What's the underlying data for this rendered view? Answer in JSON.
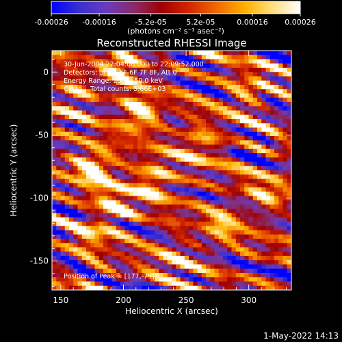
{
  "chart_data": {
    "type": "heatmap",
    "title": "Reconstructed RHESSI Image",
    "xlabel": "Heliocentric X (arcsec)",
    "ylabel": "Heliocentric Y (arcsec)",
    "xlim": [
      143,
      334
    ],
    "ylim": [
      -173,
      17
    ],
    "x_ticks": [
      150,
      200,
      250,
      300
    ],
    "y_ticks": [
      0,
      -50,
      -100,
      -150
    ],
    "colorbar": {
      "range": [
        -0.00026,
        0.00026
      ],
      "ticks": [
        "-0.00026",
        "-0.00016",
        "-5.2e-05",
        "5.2e-05",
        "0.00016",
        "0.00026"
      ],
      "tick_values": [
        -0.00026,
        -0.00016,
        -5.2e-05,
        5.2e-05,
        0.00016,
        0.00026
      ],
      "unit_label": "(photons cm⁻² s⁻¹ asec⁻²)",
      "colormap": [
        "#0000ff",
        "#3a2fd0",
        "#6a3bbd",
        "#8a2a6a",
        "#a00000",
        "#d42800",
        "#f06a00",
        "#ffb000",
        "#ffe080",
        "#ffffff"
      ]
    },
    "annotations": [
      "30-Jun-2004 22:04:08.000 to 22:09:52.000",
      "Detectors: 3F 4F 5F 6F 7F 8F, Att 0",
      "Energy Range: 25.0 - 50.0 keV",
      "Clean    Total counts: 5.66E+03",
      "Position of Peak = [177,-75]"
    ],
    "peak": {
      "x": 177,
      "y": -75
    },
    "bright_sources": [
      {
        "x": 177,
        "y": -75,
        "level": 1.0
      },
      {
        "x": 212,
        "y": -33,
        "level": 0.92
      },
      {
        "x": 200,
        "y": 10,
        "level": 0.85
      },
      {
        "x": 225,
        "y": -85,
        "level": 0.75
      },
      {
        "x": 195,
        "y": -105,
        "level": 0.7
      },
      {
        "x": 260,
        "y": -55,
        "level": 0.6
      },
      {
        "x": 300,
        "y": -15,
        "level": 0.6
      },
      {
        "x": 280,
        "y": -120,
        "level": 0.55
      },
      {
        "x": 175,
        "y": -130,
        "level": 0.55
      },
      {
        "x": 315,
        "y": -95,
        "level": 0.5
      },
      {
        "x": 240,
        "y": -150,
        "level": 0.45
      },
      {
        "x": 160,
        "y": -20,
        "level": 0.5
      }
    ],
    "grid": false
  },
  "footer": {
    "timestamp": "1-May-2022 14:13"
  }
}
